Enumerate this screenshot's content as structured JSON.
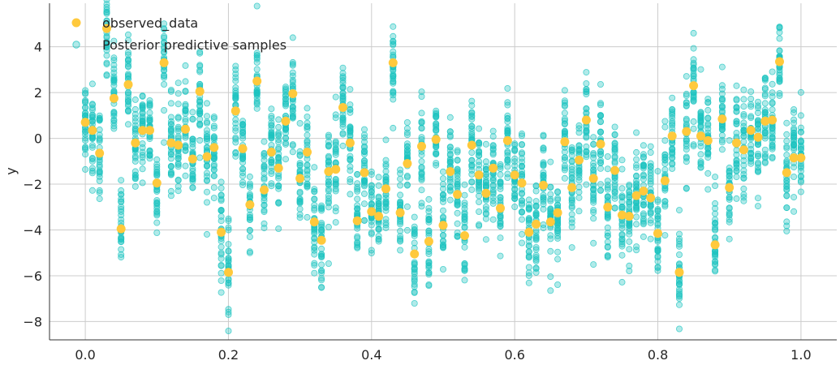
{
  "chart_data": {
    "type": "scatter",
    "title": "",
    "xlabel": "",
    "ylabel": "y",
    "xlim": [
      -0.05,
      1.05
    ],
    "ylim": [
      -8.8,
      5.9
    ],
    "xticks": [
      0.0,
      0.2,
      0.4,
      0.6,
      0.8,
      1.0
    ],
    "xtick_labels": [
      "0.0",
      "0.2",
      "0.4",
      "0.6",
      "0.8",
      "1.0"
    ],
    "yticks": [
      -8,
      -6,
      -4,
      -2,
      0,
      2,
      4
    ],
    "ytick_labels": [
      "−8",
      "−6",
      "−4",
      "−2",
      "0",
      "2",
      "4"
    ],
    "grid": true,
    "legend_position": "top-left",
    "colors": {
      "observed": "#ffc93c",
      "posterior": "#1ec4c0"
    },
    "posterior_samples_per_x": 30,
    "posterior_spread": 1.0,
    "series": [
      {
        "name": "observed_data",
        "x": [
          0.0,
          0.01,
          0.02,
          0.03,
          0.04,
          0.05,
          0.06,
          0.07,
          0.08,
          0.09,
          0.1,
          0.11,
          0.12,
          0.13,
          0.14,
          0.15,
          0.16,
          0.17,
          0.18,
          0.19,
          0.2,
          0.21,
          0.22,
          0.23,
          0.24,
          0.25,
          0.26,
          0.27,
          0.28,
          0.29,
          0.3,
          0.31,
          0.32,
          0.33,
          0.34,
          0.35,
          0.36,
          0.37,
          0.38,
          0.39,
          0.4,
          0.41,
          0.42,
          0.43,
          0.44,
          0.45,
          0.46,
          0.47,
          0.48,
          0.49,
          0.5,
          0.51,
          0.52,
          0.53,
          0.54,
          0.55,
          0.56,
          0.57,
          0.58,
          0.59,
          0.6,
          0.61,
          0.62,
          0.63,
          0.64,
          0.65,
          0.66,
          0.67,
          0.68,
          0.69,
          0.7,
          0.71,
          0.72,
          0.73,
          0.74,
          0.75,
          0.76,
          0.77,
          0.78,
          0.79,
          0.8,
          0.81,
          0.82,
          0.83,
          0.84,
          0.85,
          0.86,
          0.87,
          0.88,
          0.89,
          0.9,
          0.91,
          0.92,
          0.93,
          0.94,
          0.95,
          0.96,
          0.97,
          0.98,
          0.99,
          1.0
        ],
        "y": [
          0.7,
          0.35,
          -0.65,
          4.8,
          1.75,
          -3.95,
          2.35,
          -0.2,
          0.35,
          0.35,
          -1.95,
          3.3,
          -0.2,
          -0.3,
          0.4,
          -0.9,
          2.05,
          -0.8,
          -0.4,
          -4.1,
          -5.85,
          1.2,
          -0.45,
          -2.9,
          2.5,
          -2.25,
          -0.6,
          -1.3,
          0.75,
          1.95,
          -1.75,
          -0.6,
          -3.65,
          -4.45,
          -1.45,
          -1.35,
          1.35,
          -0.2,
          -3.6,
          -1.5,
          -3.2,
          -3.4,
          -2.2,
          3.3,
          -3.25,
          -1.1,
          -5.05,
          -0.35,
          -4.5,
          -0.05,
          -3.8,
          -1.45,
          -2.45,
          -4.25,
          -0.3,
          -1.6,
          -2.4,
          -1.3,
          -3.05,
          -0.1,
          -1.6,
          -1.95,
          -4.1,
          -3.75,
          -2.05,
          -3.65,
          -3.25,
          -0.15,
          -2.15,
          -0.95,
          0.8,
          -1.75,
          -0.25,
          -3.0,
          -1.4,
          -3.35,
          -3.4,
          -2.5,
          -2.3,
          -2.6,
          -4.15,
          -1.85,
          0.1,
          -5.85,
          0.3,
          2.3,
          0.1,
          -0.1,
          -4.65,
          0.85,
          -2.15,
          -0.2,
          -0.5,
          0.35,
          0.05,
          0.75,
          0.8,
          3.35,
          -1.5,
          -0.85,
          -0.85
        ]
      },
      {
        "name": "Posterior predictive samples"
      }
    ]
  }
}
